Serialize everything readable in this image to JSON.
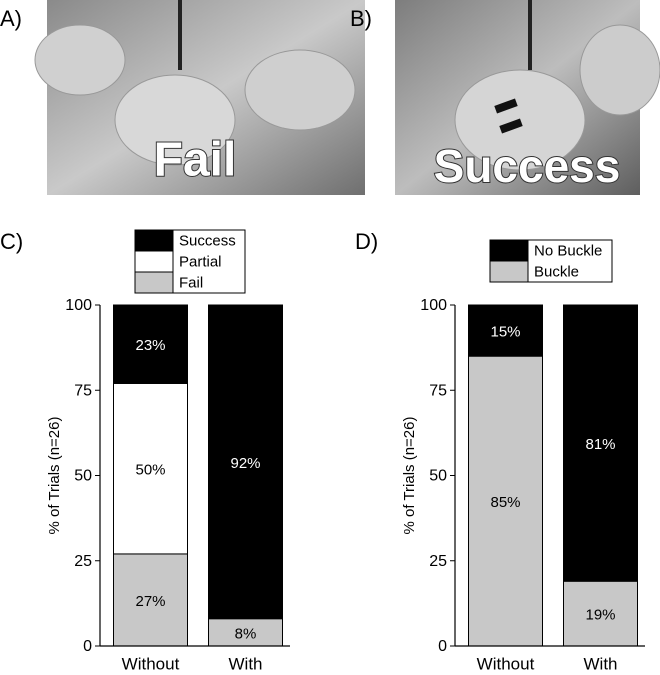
{
  "panel_labels": [
    "A)",
    "B)",
    "C)",
    "D)"
  ],
  "photos": [
    {
      "caption": "Fail"
    },
    {
      "caption": "Success"
    }
  ],
  "chart_data": [
    {
      "type": "stacked_bar",
      "y_label": "% of Trials (n=26)",
      "categories": [
        "Without",
        "With"
      ],
      "series": [
        {
          "name": "Fail",
          "color": "#c8c8c8",
          "values": [
            27,
            8
          ],
          "value_labels": [
            "27%",
            "8%"
          ]
        },
        {
          "name": "Partial",
          "color": "#ffffff",
          "values": [
            50,
            0
          ],
          "value_labels": [
            "50%",
            null
          ]
        },
        {
          "name": "Success",
          "color": "#000000",
          "values": [
            23,
            92
          ],
          "value_labels": [
            "23%",
            "92%"
          ]
        }
      ],
      "ylim": [
        0,
        100
      ],
      "yticks": [
        0,
        25,
        50,
        75,
        100
      ],
      "legend": "top"
    },
    {
      "type": "stacked_bar",
      "y_label": "% of Trials (n=26)",
      "categories": [
        "Without",
        "With"
      ],
      "series": [
        {
          "name": "Buckle",
          "color": "#c8c8c8",
          "values": [
            85,
            19
          ],
          "value_labels": [
            "85%",
            "19%"
          ]
        },
        {
          "name": "No Buckle",
          "color": "#000000",
          "values": [
            15,
            81
          ],
          "value_labels": [
            "15%",
            "81%"
          ]
        }
      ],
      "ylim": [
        0,
        100
      ],
      "yticks": [
        0,
        25,
        50,
        75,
        100
      ],
      "legend": "top"
    }
  ]
}
